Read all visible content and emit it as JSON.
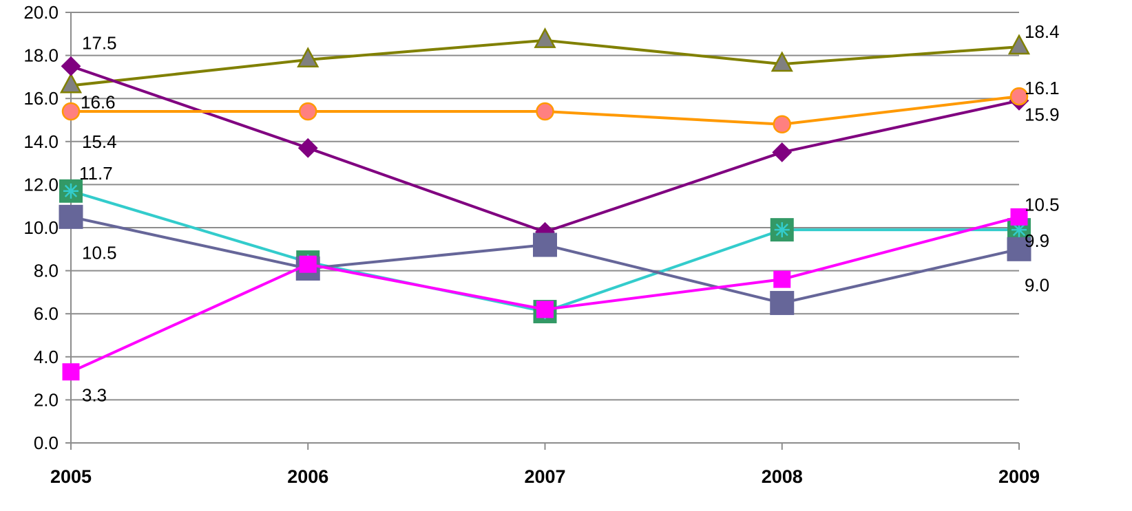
{
  "chart_data": {
    "type": "line",
    "categories": [
      "2005",
      "2006",
      "2007",
      "2008",
      "2009"
    ],
    "ylim": [
      0,
      20
    ],
    "y_ticks": [
      "0.0",
      "2.0",
      "4.0",
      "6.0",
      "8.0",
      "10.0",
      "12.0",
      "14.0",
      "16.0",
      "18.0",
      "20.0"
    ],
    "grid": true,
    "legend": "none",
    "series": [
      {
        "values": [
          16.6,
          17.8,
          18.7,
          17.6,
          18.4
        ],
        "line_color": "#808000",
        "marker": "triangle",
        "marker_fill": "#808080",
        "marker_stroke": "#808000",
        "labels": [
          "16.6",
          "",
          "",
          "",
          "18.4"
        ]
      },
      {
        "values": [
          17.5,
          13.7,
          9.8,
          13.5,
          15.9
        ],
        "line_color": "#800080",
        "marker": "diamond",
        "marker_fill": "#800080",
        "marker_stroke": "#800080",
        "labels": [
          "17.5",
          "",
          "",
          "",
          "15.9"
        ]
      },
      {
        "values": [
          15.4,
          15.4,
          15.4,
          14.8,
          16.1
        ],
        "line_color": "#ff9900",
        "marker": "circle",
        "marker_fill": "#ff8080",
        "marker_stroke": "#ff9900",
        "labels": [
          "15.4",
          "",
          "",
          "",
          "16.1"
        ]
      },
      {
        "values": [
          11.7,
          8.4,
          6.1,
          9.9,
          9.9
        ],
        "line_color": "#33cccc",
        "marker": "star-square",
        "marker_fill": "#339966",
        "marker_stroke": "#339966",
        "labels": [
          "11.7",
          "",
          "",
          "",
          "9.9"
        ]
      },
      {
        "values": [
          10.5,
          8.1,
          9.2,
          6.5,
          9.0
        ],
        "line_color": "#666699",
        "marker": "square",
        "marker_fill": "#666699",
        "marker_stroke": "#666699",
        "labels": [
          "10.5",
          "",
          "",
          "",
          "9.0"
        ]
      },
      {
        "values": [
          3.3,
          8.3,
          6.2,
          7.6,
          10.5
        ],
        "line_color": "#ff00ff",
        "marker": "square-small",
        "marker_fill": "#ff00ff",
        "marker_stroke": "#ff00ff",
        "labels": [
          "3.3",
          "",
          "",
          "",
          "10.5"
        ]
      }
    ]
  }
}
